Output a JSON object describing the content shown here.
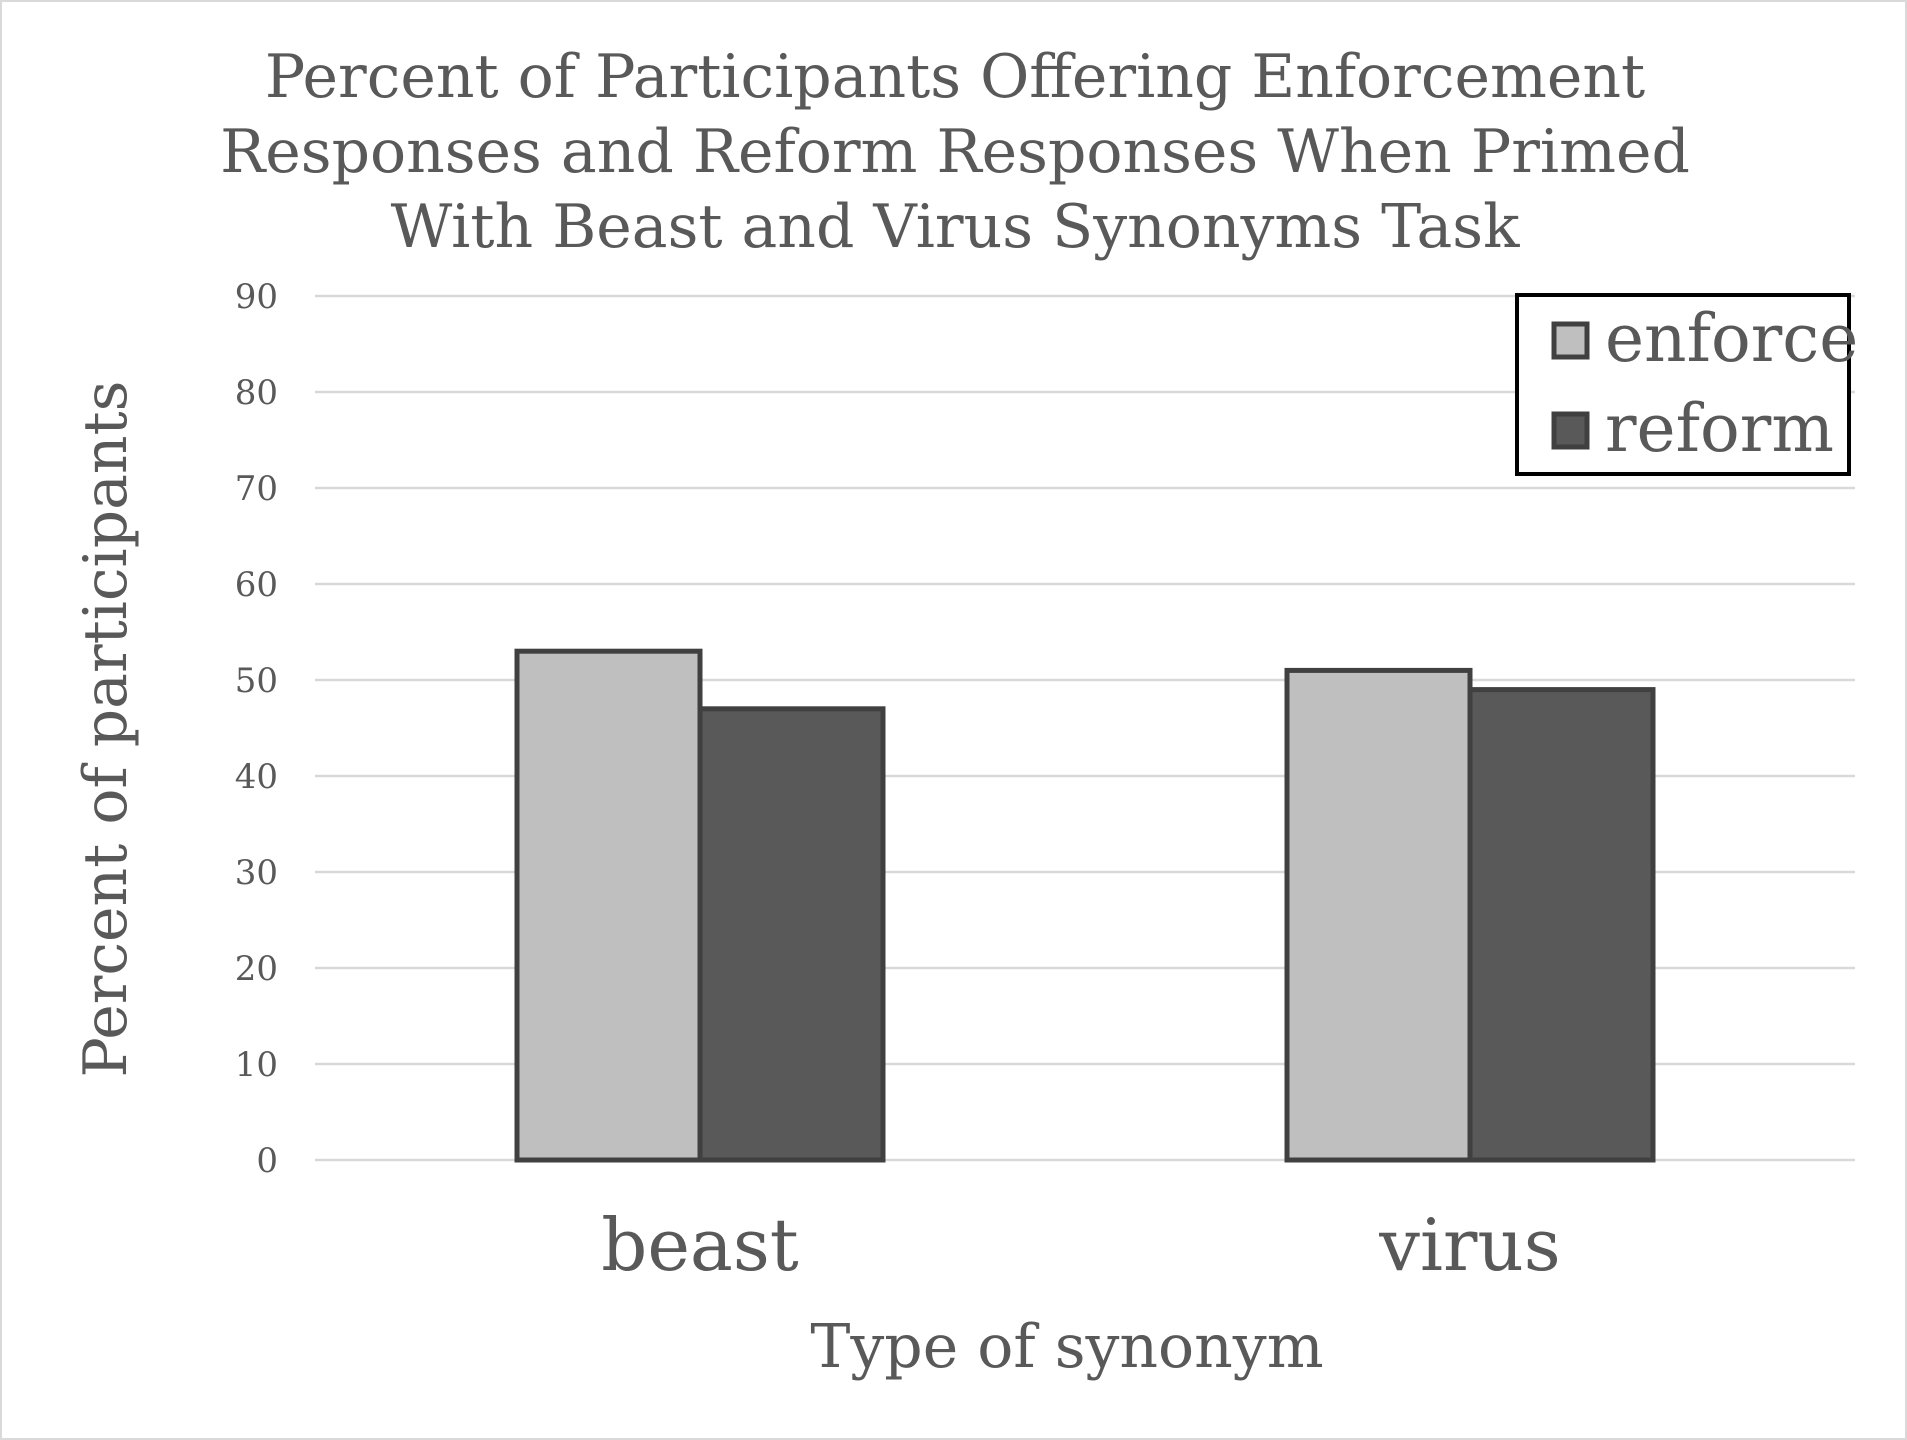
{
  "chart_data": {
    "type": "bar",
    "title_lines": [
      "Percent of Participants Offering Enforcement",
      "Responses and Reform Responses When Primed",
      "With Beast and Virus Synonyms Task"
    ],
    "xlabel": "Type of synonym",
    "ylabel": "Percent of participants",
    "categories": [
      "beast",
      "virus"
    ],
    "series": [
      {
        "name": "enforce",
        "values": [
          53,
          51
        ],
        "color": "#bfbfbf"
      },
      {
        "name": "reform",
        "values": [
          47,
          49
        ],
        "color": "#595959"
      }
    ],
    "ylim": [
      0,
      90
    ],
    "yticks": [
      "0",
      "10",
      "20",
      "30",
      "40",
      "50",
      "60",
      "70",
      "80",
      "90"
    ],
    "grid": true,
    "legend_position": "top-right",
    "text_color": "#595959",
    "bar_outline_color": "#404040",
    "gridline_color": "#d9d9d9"
  }
}
